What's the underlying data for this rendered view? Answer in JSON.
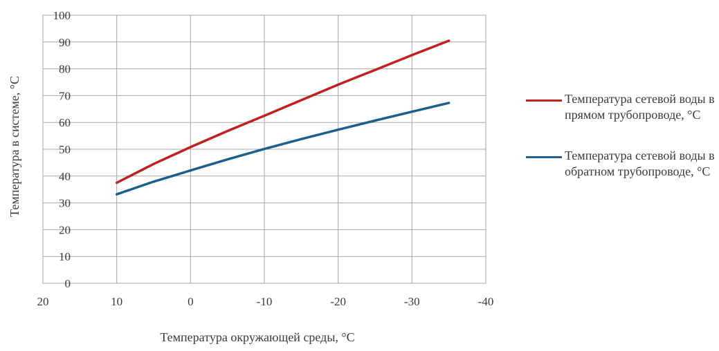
{
  "chart_data": {
    "type": "line",
    "xlabel": "Температура окружающей среды, °С",
    "ylabel": "Температура в системе, °С",
    "xlim": [
      20,
      -40
    ],
    "ylim": [
      0,
      100
    ],
    "x_ticks": [
      "20",
      "10",
      "0",
      "-10",
      "-20",
      "-30",
      "-40"
    ],
    "y_ticks": [
      "0",
      "10",
      "20",
      "30",
      "40",
      "50",
      "60",
      "70",
      "80",
      "90",
      "100"
    ],
    "grid": true,
    "legend_position": "right",
    "x": [
      10,
      5,
      0,
      -5,
      -10,
      -15,
      -20,
      -25,
      -30,
      -35
    ],
    "series": [
      {
        "name": "Температура сетевой воды в прямом трубопроводе, °С",
        "color": "#c0201f",
        "values": [
          37.5,
          44.5,
          50.8,
          56.8,
          62.5,
          68.3,
          74.1,
          79.6,
          85.1,
          90.5
        ]
      },
      {
        "name": "Температура сетевой воды в обратном трубопроводе, °С",
        "color": "#1c5f8c",
        "values": [
          33.2,
          37.9,
          42.1,
          46.2,
          50.1,
          53.8,
          57.3,
          60.7,
          64.0,
          67.3
        ]
      }
    ]
  }
}
